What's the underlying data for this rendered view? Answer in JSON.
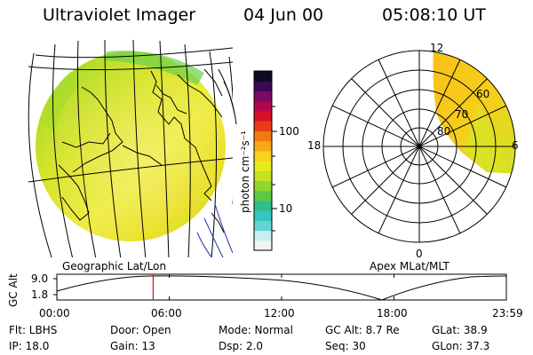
{
  "header": {
    "title": "Ultraviolet Imager",
    "date": "04 Jun 00",
    "time": "05:08:10 UT"
  },
  "colorbar": {
    "ticks": [
      "100",
      "10"
    ],
    "unit_label": "photon cm⁻²s⁻¹",
    "colors": [
      "#f4f4f4",
      "#c8eef0",
      "#5fd6d4",
      "#36c6c0",
      "#2fbf88",
      "#5cc848",
      "#8fd62e",
      "#c4e21e",
      "#eaea1a",
      "#f6d41a",
      "#f7a814",
      "#f27a10",
      "#e83c14",
      "#d8102a",
      "#b0084a",
      "#7a0a62",
      "#3a0a52",
      "#110826"
    ]
  },
  "geo_panel": {
    "label": "Geographic Lat/Lon"
  },
  "polar_panel": {
    "label": "Apex MLat/MLT",
    "mlt_labels": {
      "top": "12",
      "left": "18",
      "right": "6",
      "bottom": "0"
    },
    "lat_labels": [
      "60",
      "70",
      "80"
    ]
  },
  "alt_plot": {
    "axis_label": "GC Alt",
    "y_ticks": [
      "9.0",
      "1.8"
    ],
    "x_ticks": [
      "00:00",
      "06:00",
      "12:00",
      "18:00",
      "23:59"
    ],
    "current_time_hours": 5.14
  },
  "info": {
    "flt": "Flt: LBHS",
    "ip": "IP: 18.0",
    "door": "Door: Open",
    "gain": "Gain: 13",
    "mode": "Mode: Normal",
    "dsp": "Dsp:    2.0",
    "gc_alt": "GC Alt: 8.7 Re",
    "seq": "Seq: 30",
    "glat": "GLat:  38.9",
    "glon": "GLon:  37.3"
  }
}
